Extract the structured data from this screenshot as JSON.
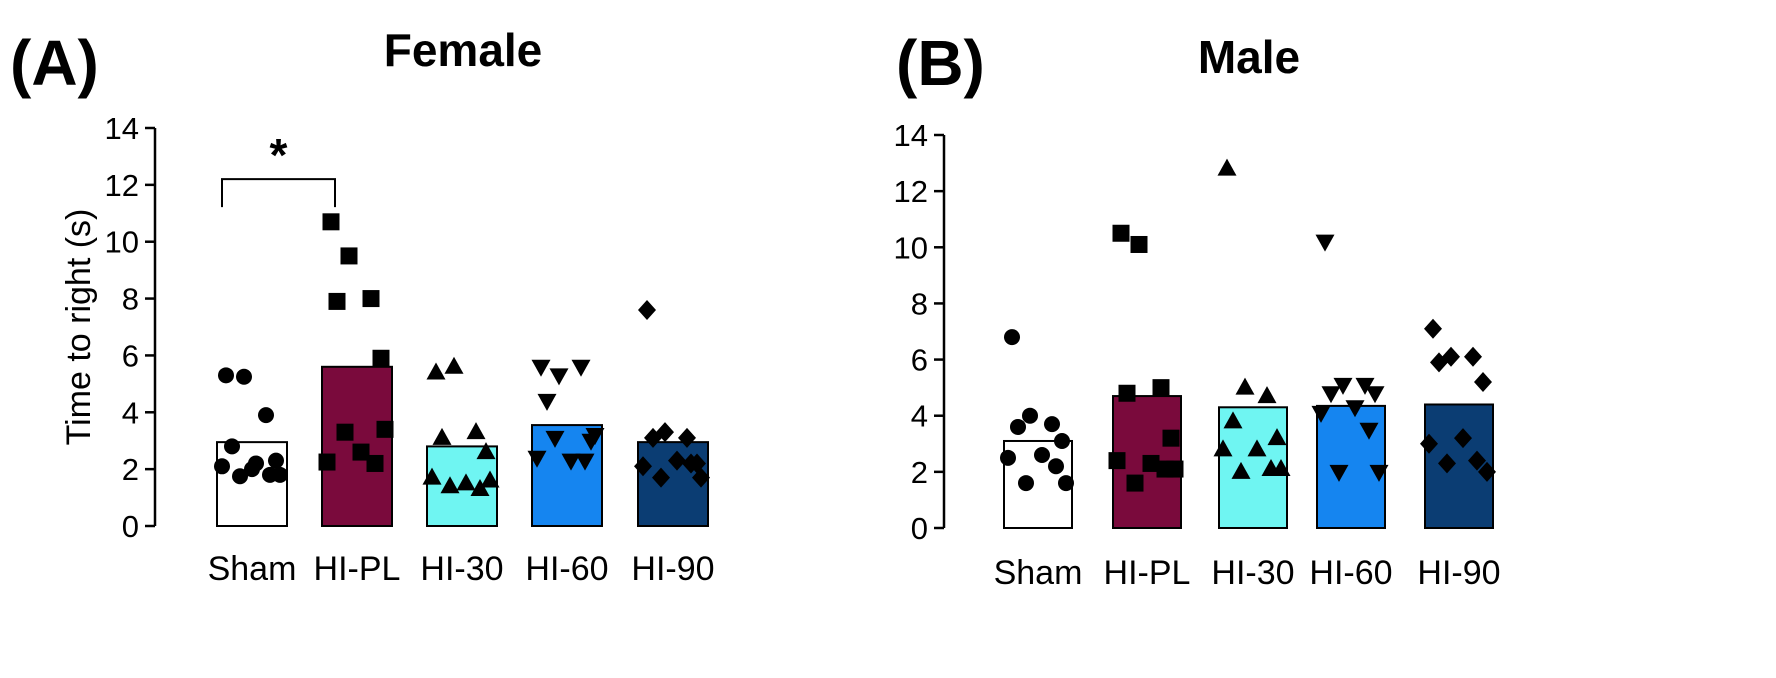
{
  "chart_data": [
    {
      "type": "bar",
      "panel_label": "(A)",
      "title": "Female",
      "ylabel": "Time to right (s)",
      "xlabel": "",
      "ylim": [
        0,
        14
      ],
      "yticks": [
        "0",
        "2",
        "4",
        "6",
        "8",
        "10",
        "12",
        "14"
      ],
      "categories": [
        "Sham",
        "HI-PL",
        "HI-30",
        "HI-60",
        "HI-90"
      ],
      "bar_colors": [
        "#ffffff",
        "#7a0a3c",
        "#6ff5f2",
        "#1585f0",
        "#0b3d73"
      ],
      "markers": [
        "circle",
        "square",
        "triangle-up",
        "triangle-down",
        "diamond"
      ],
      "means": [
        2.95,
        5.6,
        2.8,
        3.55,
        2.95
      ],
      "points": [
        [
          5.3,
          5.25,
          3.9,
          2.8,
          2.3,
          2.2,
          2.1,
          1.8,
          1.75,
          1.8,
          2.0
        ],
        [
          10.7,
          9.5,
          8.0,
          7.9,
          5.9,
          2.6,
          2.25,
          2.2,
          3.3,
          3.4
        ],
        [
          5.4,
          5.6,
          3.3,
          3.1,
          2.6,
          1.5,
          1.7,
          1.3,
          1.4,
          1.6
        ],
        [
          5.6,
          5.3,
          5.6,
          4.4,
          3.0,
          2.3,
          2.4,
          2.3,
          3.1,
          3.2
        ],
        [
          7.6,
          3.3,
          3.1,
          3.1,
          2.2,
          2.3,
          2.1,
          2.2,
          1.7,
          1.7
        ]
      ],
      "annotation": {
        "label": "*",
        "from": 0,
        "to": 1,
        "y": 12.2
      }
    },
    {
      "type": "bar",
      "panel_label": "(B)",
      "title": "Male",
      "ylabel": "Time to right (s)",
      "xlabel": "",
      "ylim": [
        0,
        14
      ],
      "yticks": [
        "0",
        "2",
        "4",
        "6",
        "8",
        "10",
        "12",
        "14"
      ],
      "categories": [
        "Sham",
        "HI-PL",
        "HI-30",
        "HI-60",
        "HI-90"
      ],
      "bar_colors": [
        "#ffffff",
        "#7a0a3c",
        "#6ff5f2",
        "#1585f0",
        "#0b3d73"
      ],
      "markers": [
        "circle",
        "square",
        "triangle-up",
        "triangle-down",
        "diamond"
      ],
      "means": [
        3.1,
        4.7,
        4.3,
        4.35,
        4.4
      ],
      "points": [
        [
          6.8,
          4.0,
          3.7,
          3.6,
          3.1,
          2.6,
          2.5,
          2.2,
          1.6,
          1.6
        ],
        [
          10.5,
          10.1,
          5.0,
          4.8,
          3.2,
          2.3,
          2.4,
          2.1,
          1.6,
          2.1
        ],
        [
          12.8,
          5.0,
          4.7,
          3.8,
          3.2,
          2.8,
          2.8,
          2.1,
          2.0,
          2.1
        ],
        [
          10.2,
          5.1,
          5.1,
          4.8,
          4.8,
          4.3,
          4.1,
          3.5,
          2.0,
          2.0
        ],
        [
          7.1,
          6.1,
          6.1,
          5.9,
          5.2,
          3.2,
          3.0,
          2.4,
          2.3,
          2.0
        ]
      ]
    }
  ]
}
